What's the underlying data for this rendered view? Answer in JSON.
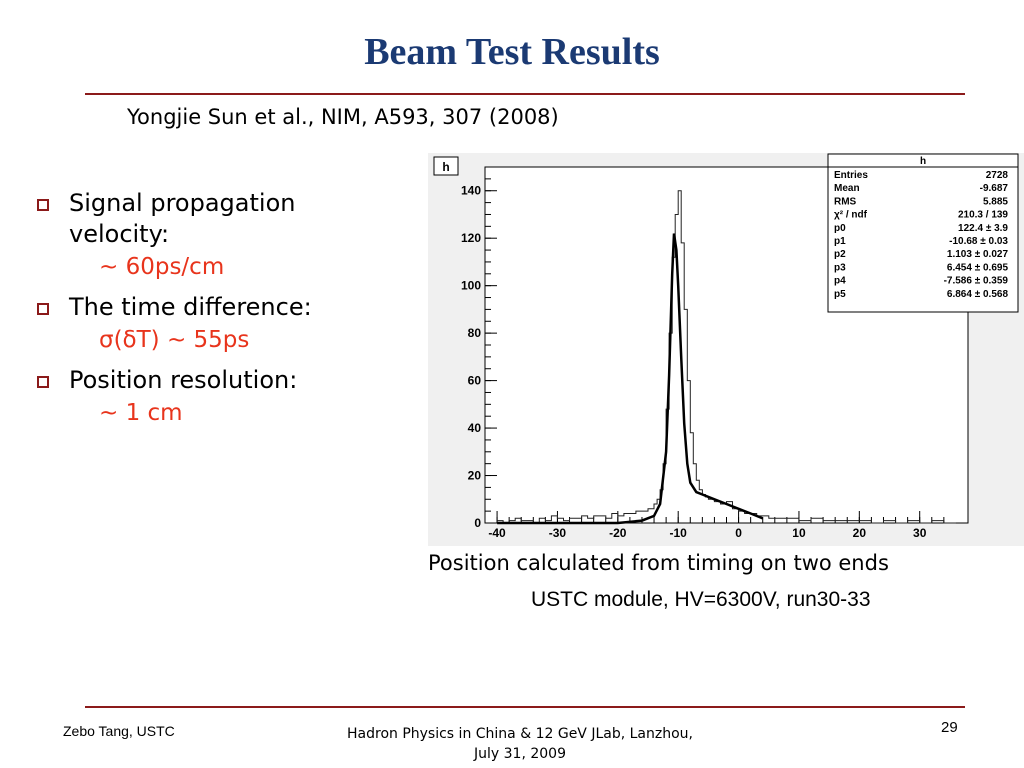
{
  "slide": {
    "title": "Beam Test Results",
    "citation": "Yongjie Sun et al., NIM, A593, 307 (2008)"
  },
  "bullets": [
    {
      "text": "Signal propagation velocity:",
      "sub": "~ 60ps/cm"
    },
    {
      "text": "The time difference:",
      "sub": "σ(δT) ~ 55ps"
    },
    {
      "text": "Position resolution:",
      "sub": "~ 1 cm"
    }
  ],
  "captions": {
    "line1": "Position calculated from timing on two ends",
    "line2": "USTC module, HV=6300V, run30-33"
  },
  "footer": {
    "author": "Zebo Tang, USTC",
    "event_line1": "Hadron Physics in China & 12 GeV JLab, Lanzhou,",
    "event_line2": "July 31, 2009",
    "page_number": "29"
  },
  "colors": {
    "title": "#1b3a73",
    "rule": "#8b1a1a",
    "highlight": "#e8341c"
  },
  "chart_data": {
    "type": "histogram",
    "title": "",
    "hist_label": "h",
    "xlabel": "",
    "ylabel": "",
    "xlim": [
      -42,
      38
    ],
    "ylim": [
      0,
      150
    ],
    "x_ticks": [
      -40,
      -30,
      -20,
      -10,
      0,
      10,
      20,
      30
    ],
    "y_ticks": [
      0,
      20,
      40,
      60,
      80,
      100,
      120,
      140
    ],
    "grid": false,
    "histogram": {
      "x": [
        -40,
        -39,
        -38,
        -37,
        -36,
        -35,
        -34,
        -33,
        -32,
        -31,
        -30,
        -29,
        -28,
        -27,
        -26,
        -25,
        -24,
        -23,
        -22,
        -21,
        -20,
        -19,
        -18,
        -17,
        -16,
        -15,
        -14.5,
        -14,
        -13.5,
        -13,
        -12.5,
        -12,
        -11.5,
        -11,
        -10.5,
        -10,
        -9.5,
        -9,
        -8.5,
        -8,
        -7.5,
        -7,
        -6.5,
        -6,
        -5.5,
        -5,
        -4.5,
        -4,
        -3,
        -2,
        -1,
        0,
        1,
        2,
        3,
        4,
        5,
        6,
        8,
        10,
        12,
        14,
        16,
        18,
        20,
        22,
        24,
        26,
        28,
        30,
        32,
        34,
        36
      ],
      "y": [
        1,
        0,
        1,
        2,
        1,
        1,
        0,
        2,
        1,
        3,
        2,
        1,
        2,
        2,
        3,
        2,
        3,
        3,
        2,
        4,
        3,
        4,
        4,
        5,
        5,
        6,
        6,
        8,
        10,
        14,
        25,
        48,
        80,
        112,
        130,
        140,
        118,
        90,
        60,
        38,
        25,
        18,
        14,
        12,
        11,
        10,
        10,
        9,
        8,
        9,
        6,
        5,
        4,
        4,
        3,
        3,
        2,
        2,
        2,
        1,
        2,
        1,
        1,
        1,
        1,
        0,
        1,
        0,
        1,
        0,
        1,
        0,
        0
      ]
    },
    "fit": {
      "x": [
        -40,
        -30,
        -20,
        -16,
        -14,
        -13,
        -12,
        -11.5,
        -11,
        -10.7,
        -10.3,
        -10,
        -9.5,
        -9,
        -8.5,
        -8,
        -7,
        -6,
        -4,
        -2,
        0,
        2,
        4
      ],
      "y": [
        0,
        0,
        0,
        1,
        3,
        8,
        30,
        62,
        105,
        122,
        115,
        100,
        70,
        42,
        25,
        17,
        13,
        12,
        10,
        8,
        6,
        4,
        2
      ]
    },
    "stats": {
      "header": "h",
      "rows": [
        {
          "label": "Entries",
          "value": "2728"
        },
        {
          "label": "Mean",
          "value": "-9.687"
        },
        {
          "label": "RMS",
          "value": "5.885"
        },
        {
          "label": "χ² / ndf",
          "value": "210.3 / 139"
        },
        {
          "label": "p0",
          "value": "122.4 ± 3.9"
        },
        {
          "label": "p1",
          "value": "-10.68 ± 0.03"
        },
        {
          "label": "p2",
          "value": "1.103 ± 0.027"
        },
        {
          "label": "p3",
          "value": "6.454 ± 0.695"
        },
        {
          "label": "p4",
          "value": "-7.586 ± 0.359"
        },
        {
          "label": "p5",
          "value": "6.864 ± 0.568"
        }
      ]
    }
  }
}
